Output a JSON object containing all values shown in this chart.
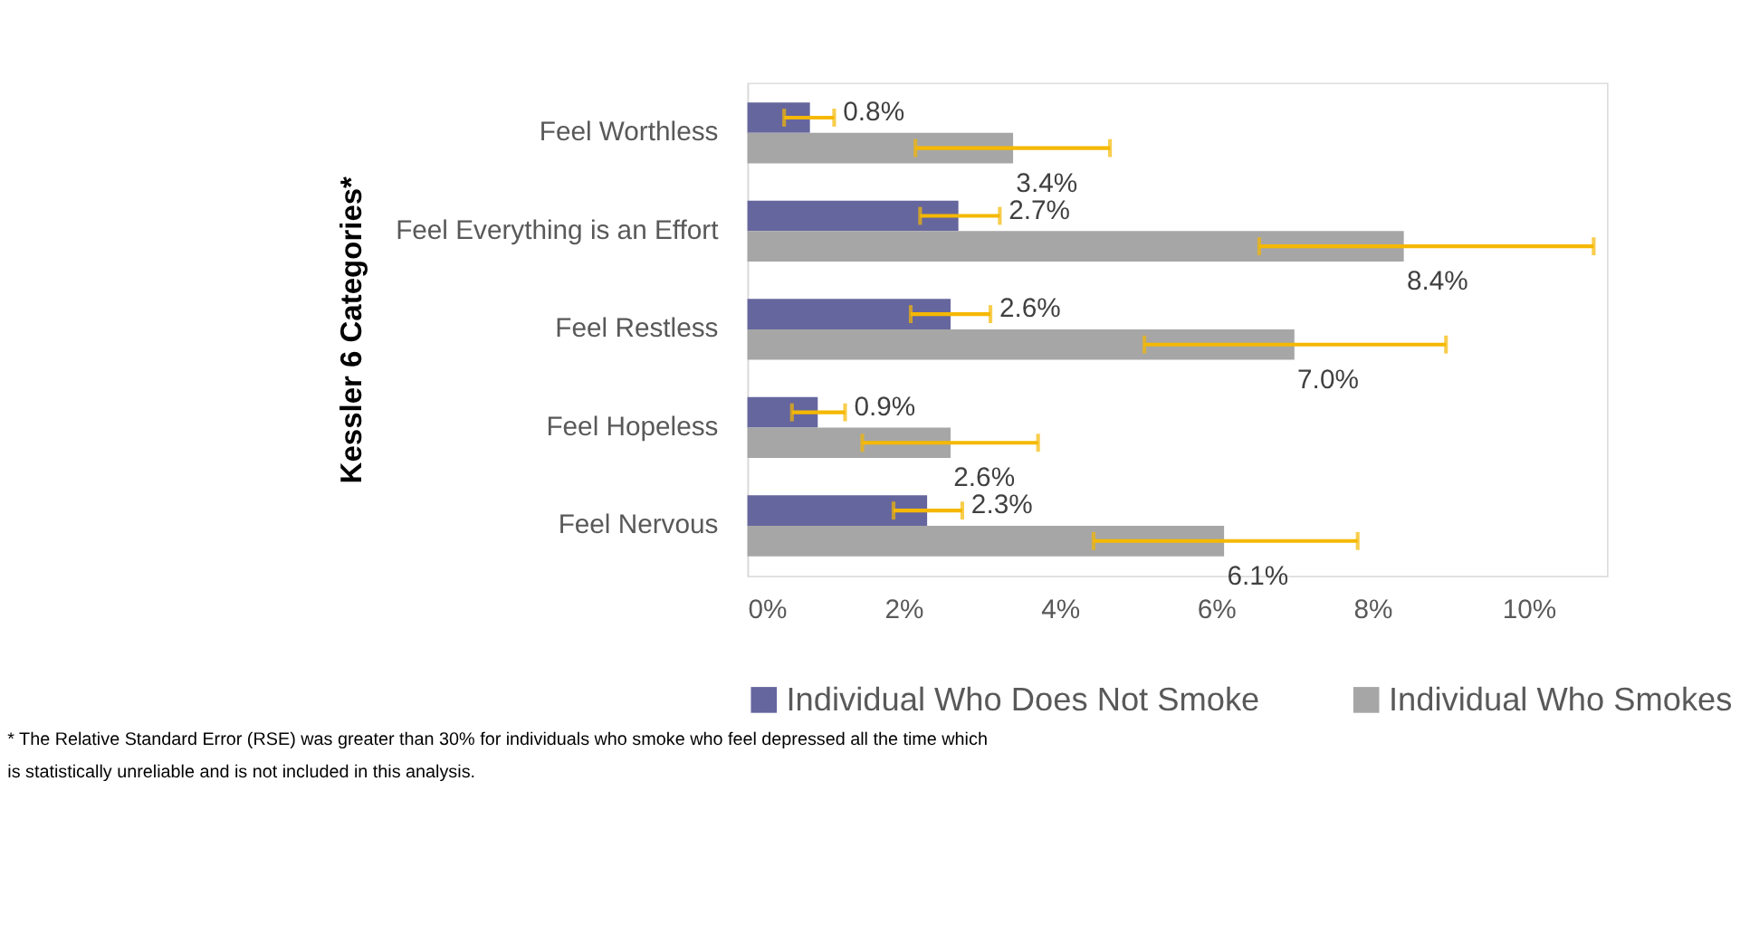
{
  "chart_data": {
    "type": "bar",
    "orientation": "horizontal",
    "ylabel": "Kessler 6 Categories*",
    "categories": [
      "Feel Worthless",
      "Feel Everything is an Effort",
      "Feel Restless",
      "Feel Hopeless",
      "Feel Nervous"
    ],
    "series": [
      {
        "name": "Individual Who Does Not Smoke",
        "color": "#66669e",
        "values": [
          0.8,
          2.7,
          2.6,
          0.9,
          2.3
        ],
        "errors": [
          [
            0.47,
            1.11
          ],
          [
            2.21,
            3.23
          ],
          [
            2.09,
            3.11
          ],
          [
            0.57,
            1.25
          ],
          [
            1.87,
            2.75
          ]
        ],
        "value_labels": [
          "0.8%",
          "2.7%",
          "2.6%",
          "0.9%",
          "2.3%"
        ]
      },
      {
        "name": "Individual Who Smokes",
        "color": "#a6a6a6",
        "values": [
          3.4,
          8.4,
          7.0,
          2.6,
          6.1
        ],
        "errors": [
          [
            2.15,
            4.64
          ],
          [
            6.55,
            10.83
          ],
          [
            5.08,
            8.94
          ],
          [
            1.47,
            3.72
          ],
          [
            4.43,
            7.81
          ]
        ],
        "value_labels": [
          "3.4%",
          "8.4%",
          "7.0%",
          "2.6%",
          "6.1%"
        ]
      }
    ],
    "xlim": [
      0,
      11
    ],
    "xticks": [
      {
        "value": 0,
        "label": "0%"
      },
      {
        "value": 2,
        "label": "2%"
      },
      {
        "value": 4,
        "label": "4%"
      },
      {
        "value": 6,
        "label": "6%"
      },
      {
        "value": 8,
        "label": "8%"
      },
      {
        "value": 10,
        "label": "10%"
      }
    ],
    "grid": false,
    "legend": "bottom",
    "annotations": [
      "* The Relative Standard Error (RSE) was greater than 30% for individuals who smoke who feel depressed all the time which is statistically unreliable and is not included in this analysis."
    ]
  }
}
